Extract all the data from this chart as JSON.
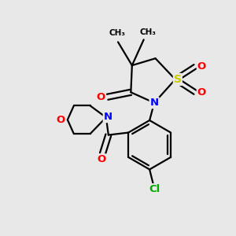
{
  "background_color": "#e8e8e8",
  "bond_color": "#000000",
  "atom_colors": {
    "N": "#0000ff",
    "O": "#ff0000",
    "S": "#cccc00",
    "Cl": "#00aa00",
    "C": "#000000"
  },
  "figsize": [
    3.0,
    3.0
  ],
  "dpi": 100
}
